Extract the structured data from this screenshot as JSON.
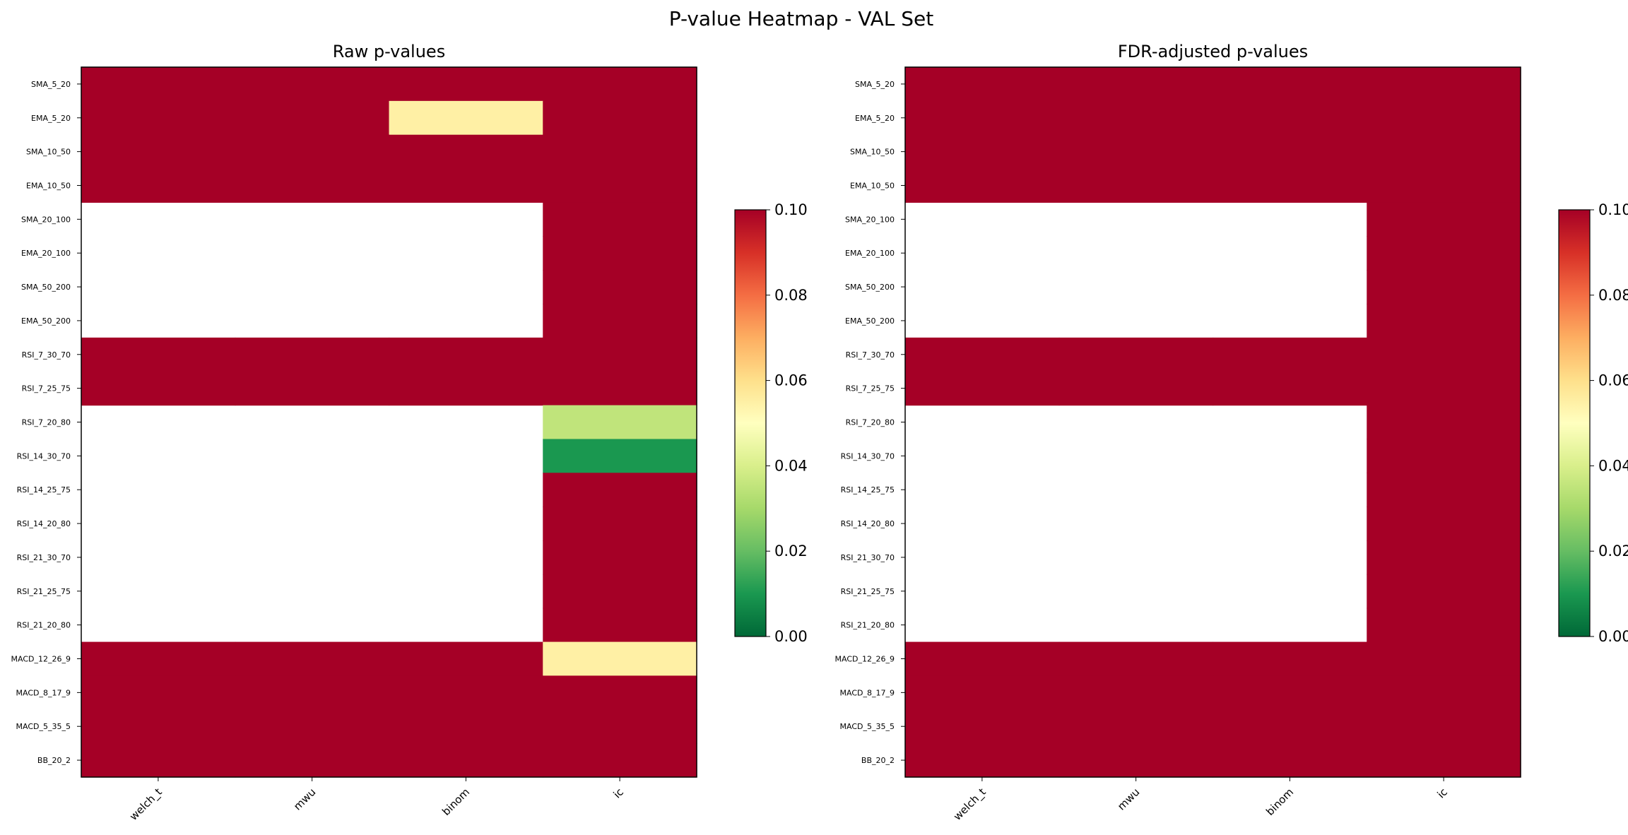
{
  "suptitle": "P-value Heatmap - VAL Set",
  "colorbar": {
    "ticks": [
      "0.00",
      "0.02",
      "0.04",
      "0.06",
      "0.08",
      "0.10"
    ],
    "range": [
      0.0,
      0.1
    ],
    "colormap": "RdYlGn",
    "colors": [
      "#006837",
      "#1a9850",
      "#66bd63",
      "#a6d96a",
      "#d9ef8b",
      "#ffffbf",
      "#fee08b",
      "#fdae61",
      "#f46d43",
      "#d73027",
      "#a50026"
    ]
  },
  "chart_data": [
    {
      "type": "heatmap",
      "title": "Raw p-values",
      "x": [
        "welch_t",
        "mwu",
        "binom",
        "ic"
      ],
      "y": [
        "SMA_5_20",
        "EMA_5_20",
        "SMA_10_50",
        "EMA_10_50",
        "SMA_20_100",
        "EMA_20_100",
        "SMA_50_200",
        "EMA_50_200",
        "RSI_7_30_70",
        "RSI_7_25_75",
        "RSI_7_20_80",
        "RSI_14_30_70",
        "RSI_14_25_75",
        "RSI_14_20_80",
        "RSI_21_30_70",
        "RSI_21_25_75",
        "RSI_21_20_80",
        "MACD_12_26_9",
        "MACD_8_17_9",
        "MACD_5_35_5",
        "BB_20_2"
      ],
      "values": [
        [
          0.1,
          0.1,
          0.1,
          0.1
        ],
        [
          0.1,
          0.1,
          0.055,
          0.1
        ],
        [
          0.1,
          0.1,
          0.1,
          0.1
        ],
        [
          0.1,
          0.1,
          0.1,
          0.1
        ],
        [
          null,
          null,
          null,
          0.1
        ],
        [
          null,
          null,
          null,
          0.1
        ],
        [
          null,
          null,
          null,
          0.1
        ],
        [
          null,
          null,
          null,
          0.1
        ],
        [
          0.1,
          0.1,
          0.1,
          0.1
        ],
        [
          0.1,
          0.1,
          0.1,
          0.1
        ],
        [
          null,
          null,
          null,
          0.035
        ],
        [
          null,
          null,
          null,
          0.01
        ],
        [
          null,
          null,
          null,
          0.1
        ],
        [
          null,
          null,
          null,
          0.1
        ],
        [
          null,
          null,
          null,
          0.1
        ],
        [
          null,
          null,
          null,
          0.1
        ],
        [
          null,
          null,
          null,
          0.1
        ],
        [
          0.1,
          0.1,
          0.1,
          0.055
        ],
        [
          0.1,
          0.1,
          0.1,
          0.1
        ],
        [
          0.1,
          0.1,
          0.1,
          0.1
        ],
        [
          0.1,
          0.1,
          0.1,
          0.1
        ]
      ]
    },
    {
      "type": "heatmap",
      "title": "FDR-adjusted p-values",
      "x": [
        "welch_t",
        "mwu",
        "binom",
        "ic"
      ],
      "y": [
        "SMA_5_20",
        "EMA_5_20",
        "SMA_10_50",
        "EMA_10_50",
        "SMA_20_100",
        "EMA_20_100",
        "SMA_50_200",
        "EMA_50_200",
        "RSI_7_30_70",
        "RSI_7_25_75",
        "RSI_7_20_80",
        "RSI_14_30_70",
        "RSI_14_25_75",
        "RSI_14_20_80",
        "RSI_21_30_70",
        "RSI_21_25_75",
        "RSI_21_20_80",
        "MACD_12_26_9",
        "MACD_8_17_9",
        "MACD_5_35_5",
        "BB_20_2"
      ],
      "values": [
        [
          0.1,
          0.1,
          0.1,
          0.1
        ],
        [
          0.1,
          0.1,
          0.1,
          0.1
        ],
        [
          0.1,
          0.1,
          0.1,
          0.1
        ],
        [
          0.1,
          0.1,
          0.1,
          0.1
        ],
        [
          null,
          null,
          null,
          0.1
        ],
        [
          null,
          null,
          null,
          0.1
        ],
        [
          null,
          null,
          null,
          0.1
        ],
        [
          null,
          null,
          null,
          0.1
        ],
        [
          0.1,
          0.1,
          0.1,
          0.1
        ],
        [
          0.1,
          0.1,
          0.1,
          0.1
        ],
        [
          null,
          null,
          null,
          0.1
        ],
        [
          null,
          null,
          null,
          0.1
        ],
        [
          null,
          null,
          null,
          0.1
        ],
        [
          null,
          null,
          null,
          0.1
        ],
        [
          null,
          null,
          null,
          0.1
        ],
        [
          null,
          null,
          null,
          0.1
        ],
        [
          null,
          null,
          null,
          0.1
        ],
        [
          0.1,
          0.1,
          0.1,
          0.1
        ],
        [
          0.1,
          0.1,
          0.1,
          0.1
        ],
        [
          0.1,
          0.1,
          0.1,
          0.1
        ],
        [
          0.1,
          0.1,
          0.1,
          0.1
        ]
      ]
    }
  ]
}
